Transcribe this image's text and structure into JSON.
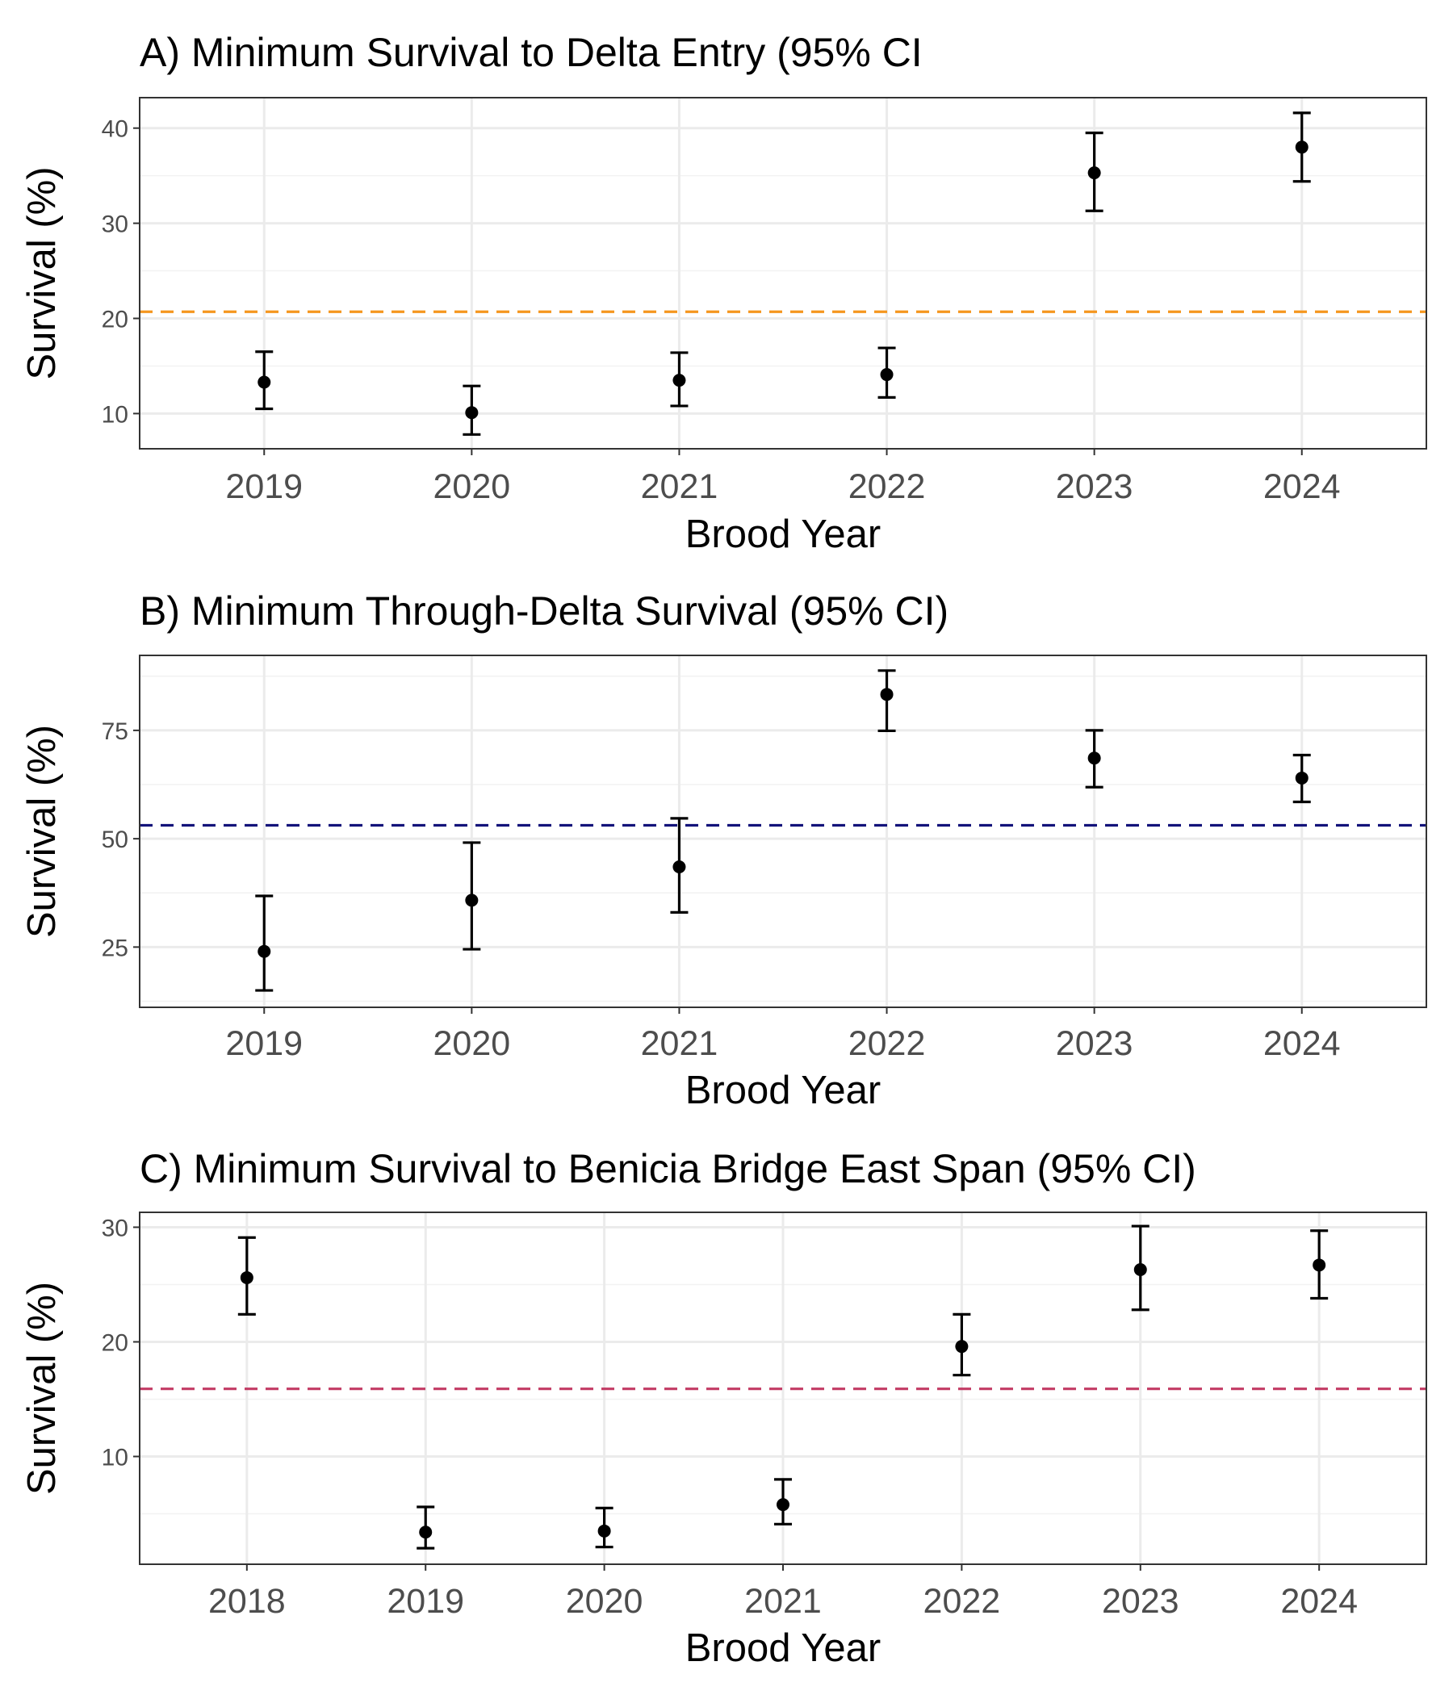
{
  "chart_data": [
    {
      "type": "scatter",
      "title": "A) Minimum Survival to Delta Entry (95% CI",
      "xlabel": "Brood Year",
      "ylabel": "Survival (%)",
      "categories": [
        "2019",
        "2020",
        "2021",
        "2022",
        "2023",
        "2024"
      ],
      "values": [
        13.3,
        10.1,
        13.5,
        14.1,
        35.3,
        38.0
      ],
      "ci_lower": [
        10.5,
        7.8,
        10.8,
        11.7,
        31.3,
        34.4
      ],
      "ci_upper": [
        16.5,
        12.9,
        16.4,
        16.9,
        39.5,
        41.6
      ],
      "reference_line": {
        "value": 20.7,
        "color": "#f5961e"
      },
      "yticks": [
        10,
        20,
        30,
        40
      ],
      "ylim": [
        6.3,
        43.2
      ],
      "grid": true,
      "point_color": "#000000"
    },
    {
      "type": "scatter",
      "title": "B) Minimum Through-Delta Survival (95% CI)",
      "xlabel": "Brood Year",
      "ylabel": "Survival (%)",
      "categories": [
        "2019",
        "2020",
        "2021",
        "2022",
        "2023",
        "2024"
      ],
      "values": [
        24.0,
        35.8,
        43.5,
        83.3,
        68.6,
        64.0
      ],
      "ci_lower": [
        15.0,
        24.5,
        33.0,
        74.9,
        61.9,
        58.5
      ],
      "ci_upper": [
        36.8,
        49.1,
        54.7,
        88.8,
        75.0,
        69.3
      ],
      "reference_line": {
        "value": 53.1,
        "color": "#12127a"
      },
      "yticks": [
        25,
        50,
        75
      ],
      "ylim": [
        11.1,
        92.3
      ],
      "grid": true,
      "point_color": "#000000"
    },
    {
      "type": "scatter",
      "title": "C) Minimum Survival to Benicia Bridge East Span (95% CI)",
      "xlabel": "Brood Year",
      "ylabel": "Survival (%)",
      "categories": [
        "2018",
        "2019",
        "2020",
        "2021",
        "2022",
        "2023",
        "2024"
      ],
      "values": [
        25.6,
        3.4,
        3.5,
        5.8,
        19.6,
        26.3,
        26.7
      ],
      "ci_lower": [
        22.4,
        2.0,
        2.1,
        4.1,
        17.1,
        22.8,
        23.8
      ],
      "ci_upper": [
        29.1,
        5.6,
        5.5,
        8.0,
        22.4,
        30.1,
        29.7
      ],
      "reference_line": {
        "value": 15.9,
        "color": "#c23b64"
      },
      "yticks": [
        10,
        20,
        30
      ],
      "ylim": [
        0.6,
        31.3
      ],
      "grid": true,
      "point_color": "#000000"
    }
  ]
}
